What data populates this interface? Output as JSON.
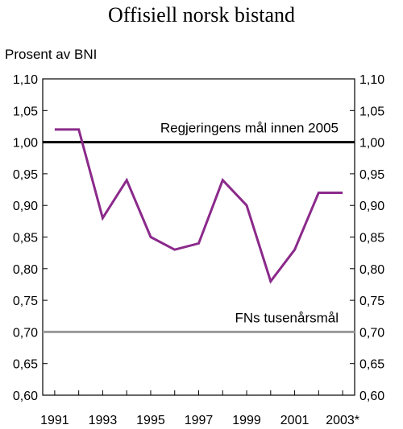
{
  "chart_data": {
    "type": "line",
    "title": "Offisiell norsk bistand",
    "ylabel": "Prosent av BNI",
    "xlabel": "",
    "x": [
      1991,
      1992,
      1993,
      1994,
      1995,
      1996,
      1997,
      1998,
      1999,
      2000,
      2001,
      2002,
      2003
    ],
    "x_tick_labels": [
      "1991",
      "1993",
      "1995",
      "1997",
      "1999",
      "2001",
      "2003*"
    ],
    "x_tick_values": [
      1991,
      1993,
      1995,
      1997,
      1999,
      2001,
      2003
    ],
    "xlim": [
      1990.5,
      2003.5
    ],
    "ylim": [
      0.6,
      1.1
    ],
    "y_ticks": [
      0.6,
      0.65,
      0.7,
      0.75,
      0.8,
      0.85,
      0.9,
      0.95,
      1.0,
      1.05,
      1.1
    ],
    "y_tick_labels": [
      "0,60",
      "0,65",
      "0,70",
      "0,75",
      "0,80",
      "0,85",
      "0,90",
      "0,95",
      "1,00",
      "1,05",
      "1,10"
    ],
    "grid": false,
    "series": [
      {
        "values": [
          1.02,
          1.02,
          0.88,
          0.94,
          0.85,
          0.83,
          0.84,
          0.94,
          0.9,
          0.78,
          0.83,
          0.92,
          0.92
        ],
        "color": "#8b2a8b"
      }
    ],
    "reference_lines": [
      {
        "label": "Regjeringens mål innen 2005",
        "value": 1.0,
        "color": "#000000"
      },
      {
        "label": "FNs tusenårsmål",
        "value": 0.7,
        "color": "#9a9a9a"
      }
    ]
  }
}
